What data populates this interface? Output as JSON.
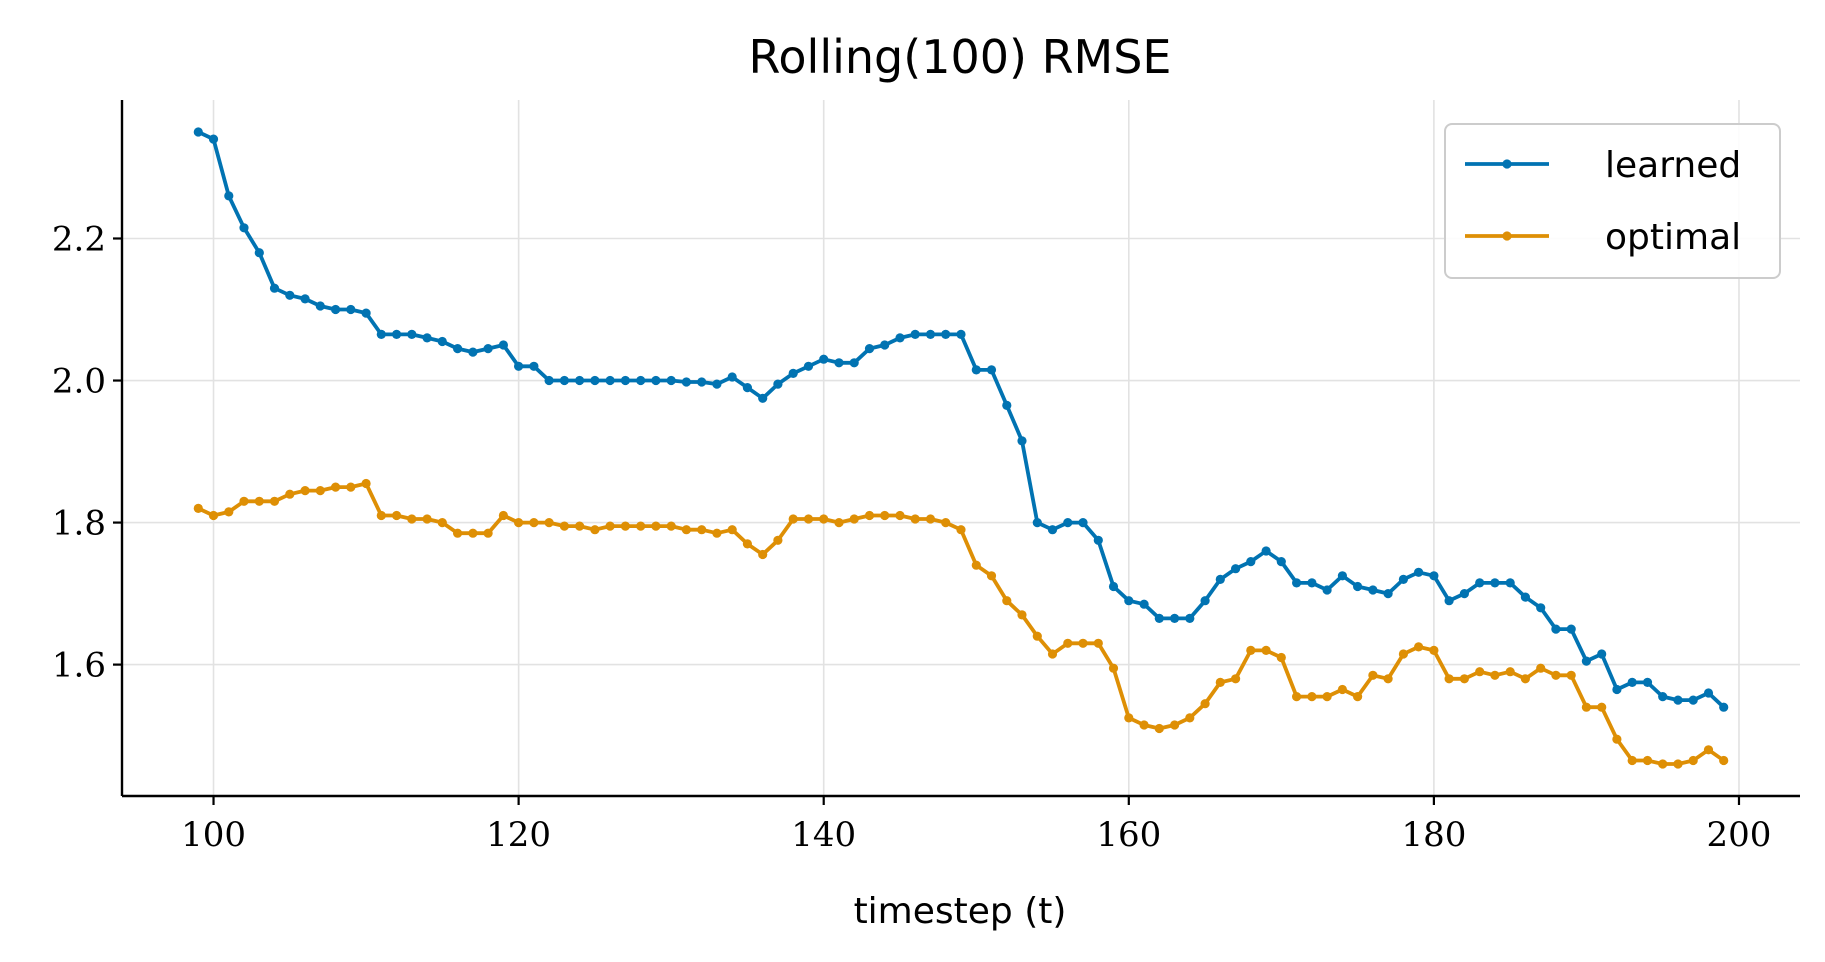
{
  "chart_data": {
    "type": "line",
    "title": "Rolling(100) RMSE",
    "xlabel": "timestep (t)",
    "ylabel": "",
    "xlim": [
      94,
      204
    ],
    "ylim": [
      1.415,
      2.395
    ],
    "xticks": [
      100,
      120,
      140,
      160,
      180,
      200
    ],
    "yticks": [
      1.6,
      1.8,
      2.0,
      2.2
    ],
    "xtick_labels": [
      "100",
      "120",
      "140",
      "160",
      "180",
      "200"
    ],
    "ytick_labels": [
      "1.6",
      "1.8",
      "2.0",
      "2.2"
    ],
    "grid": true,
    "legend_position": "top-right",
    "x": [
      99,
      100,
      101,
      102,
      103,
      104,
      105,
      106,
      107,
      108,
      109,
      110,
      111,
      112,
      113,
      114,
      115,
      116,
      117,
      118,
      119,
      120,
      121,
      122,
      123,
      124,
      125,
      126,
      127,
      128,
      129,
      130,
      131,
      132,
      133,
      134,
      135,
      136,
      137,
      138,
      139,
      140,
      141,
      142,
      143,
      144,
      145,
      146,
      147,
      148,
      149,
      150,
      151,
      152,
      153,
      154,
      155,
      156,
      157,
      158,
      159,
      160,
      161,
      162,
      163,
      164,
      165,
      166,
      167,
      168,
      169,
      170,
      171,
      172,
      173,
      174,
      175,
      176,
      177,
      178,
      179,
      180,
      181,
      182,
      183,
      184,
      185,
      186,
      187,
      188,
      189,
      190,
      191,
      192,
      193,
      194,
      195,
      196,
      197,
      198,
      199
    ],
    "series": [
      {
        "name": "learned",
        "color": "#0173b2",
        "values": [
          2.35,
          2.34,
          2.26,
          2.215,
          2.18,
          2.13,
          2.12,
          2.115,
          2.105,
          2.1,
          2.1,
          2.095,
          2.065,
          2.065,
          2.065,
          2.06,
          2.055,
          2.045,
          2.04,
          2.045,
          2.05,
          2.02,
          2.02,
          2.0,
          2.0,
          2.0,
          2.0,
          2.0,
          2.0,
          2.0,
          2.0,
          2.0,
          1.998,
          1.998,
          1.995,
          2.005,
          1.99,
          1.975,
          1.995,
          2.01,
          2.02,
          2.03,
          2.025,
          2.025,
          2.045,
          2.05,
          2.06,
          2.065,
          2.065,
          2.065,
          2.065,
          2.015,
          2.015,
          1.965,
          1.915,
          1.8,
          1.79,
          1.8,
          1.8,
          1.775,
          1.71,
          1.69,
          1.685,
          1.665,
          1.665,
          1.665,
          1.69,
          1.72,
          1.735,
          1.745,
          1.76,
          1.745,
          1.715,
          1.715,
          1.705,
          1.725,
          1.71,
          1.705,
          1.7,
          1.72,
          1.73,
          1.725,
          1.69,
          1.7,
          1.715,
          1.715,
          1.715,
          1.695,
          1.68,
          1.65,
          1.65,
          1.605,
          1.615,
          1.565,
          1.575,
          1.575,
          1.555,
          1.55,
          1.55,
          1.56,
          1.54
        ]
      },
      {
        "name": "optimal",
        "color": "#de8f05",
        "values": [
          1.82,
          1.81,
          1.815,
          1.83,
          1.83,
          1.83,
          1.84,
          1.845,
          1.845,
          1.85,
          1.85,
          1.855,
          1.81,
          1.81,
          1.805,
          1.805,
          1.8,
          1.785,
          1.785,
          1.785,
          1.81,
          1.8,
          1.8,
          1.8,
          1.795,
          1.795,
          1.79,
          1.795,
          1.795,
          1.795,
          1.795,
          1.795,
          1.79,
          1.79,
          1.785,
          1.79,
          1.77,
          1.755,
          1.775,
          1.805,
          1.805,
          1.805,
          1.8,
          1.805,
          1.81,
          1.81,
          1.81,
          1.805,
          1.805,
          1.8,
          1.79,
          1.74,
          1.725,
          1.69,
          1.67,
          1.64,
          1.615,
          1.63,
          1.63,
          1.63,
          1.595,
          1.525,
          1.515,
          1.51,
          1.515,
          1.525,
          1.545,
          1.575,
          1.58,
          1.62,
          1.62,
          1.61,
          1.555,
          1.555,
          1.555,
          1.565,
          1.555,
          1.585,
          1.58,
          1.615,
          1.625,
          1.62,
          1.58,
          1.58,
          1.59,
          1.585,
          1.59,
          1.58,
          1.595,
          1.585,
          1.585,
          1.54,
          1.54,
          1.495,
          1.465,
          1.465,
          1.46,
          1.46,
          1.465,
          1.48,
          1.465
        ]
      }
    ]
  }
}
